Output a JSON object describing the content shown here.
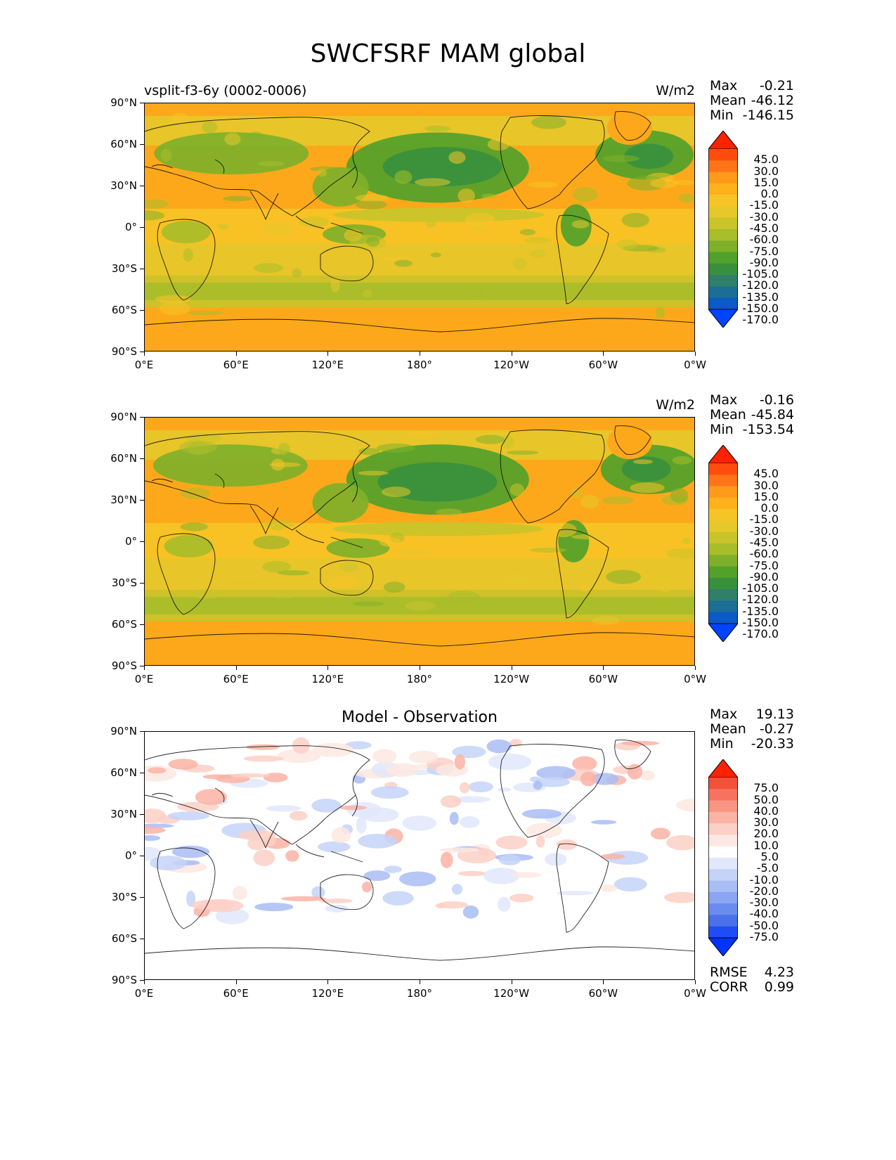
{
  "title": "SWCFSRF MAM global",
  "x_ticks": [
    "0°E",
    "60°E",
    "120°E",
    "180°",
    "120°W",
    "60°W",
    "0°W"
  ],
  "y_ticks": [
    "90°N",
    "60°N",
    "30°N",
    "0°",
    "30°S",
    "60°S",
    "90°S"
  ],
  "panels": [
    {
      "left_label": "vsplit-f3-6y (0002-0006)",
      "center_label": "",
      "units": "W/m2",
      "stats": [
        {
          "key": "Max",
          "value": "-0.21"
        },
        {
          "key": "Mean",
          "value": "-46.12"
        },
        {
          "key": "Min",
          "value": "-146.15"
        }
      ],
      "colorbar": {
        "labels": [
          "45.0",
          "30.0",
          "15.0",
          "0.0",
          "-15.0",
          "-30.0",
          "-45.0",
          "-60.0",
          "-75.0",
          "-90.0",
          "-105.0",
          "-120.0",
          "-135.0",
          "-150.0",
          "-170.0"
        ],
        "colors": [
          "#ff2200",
          "#ff4d0d",
          "#ff7417",
          "#ff9a1a",
          "#fdb11a",
          "#f7c426",
          "#e6c82b",
          "#c9c42a",
          "#a8bd2a",
          "#7fb02a",
          "#52a12a",
          "#38903d",
          "#2f7f6a",
          "#1b6e96",
          "#0a5ac8",
          "#0044ff"
        ]
      },
      "map_kind": "sw"
    },
    {
      "left_label": "",
      "center_label": "",
      "units": "W/m2",
      "stats": [
        {
          "key": "Max",
          "value": "-0.16"
        },
        {
          "key": "Mean",
          "value": "-45.84"
        },
        {
          "key": "Min",
          "value": "-153.54"
        }
      ],
      "colorbar": {
        "labels": [
          "45.0",
          "30.0",
          "15.0",
          "0.0",
          "-15.0",
          "-30.0",
          "-45.0",
          "-60.0",
          "-75.0",
          "-90.0",
          "-105.0",
          "-120.0",
          "-135.0",
          "-150.0",
          "-170.0"
        ],
        "colors": [
          "#ff2200",
          "#ff4d0d",
          "#ff7417",
          "#ff9a1a",
          "#fdb11a",
          "#f7c426",
          "#e6c82b",
          "#c9c42a",
          "#a8bd2a",
          "#7fb02a",
          "#52a12a",
          "#38903d",
          "#2f7f6a",
          "#1b6e96",
          "#0a5ac8",
          "#0044ff"
        ]
      },
      "map_kind": "sw"
    },
    {
      "left_label": "",
      "center_label": "Model - Observation",
      "units": "",
      "stats": [
        {
          "key": "Max",
          "value": "19.13"
        },
        {
          "key": "Mean",
          "value": "-0.27"
        },
        {
          "key": "Min",
          "value": "-20.33"
        }
      ],
      "extra_stats": [
        {
          "key": "RMSE",
          "value": "4.23"
        },
        {
          "key": "CORR",
          "value": "0.99"
        }
      ],
      "colorbar": {
        "labels": [
          "75.0",
          "50.0",
          "40.0",
          "30.0",
          "20.0",
          "10.0",
          "5.0",
          "-5.0",
          "-10.0",
          "-20.0",
          "-30.0",
          "-40.0",
          "-50.0",
          "-75.0"
        ],
        "colors": [
          "#ff2200",
          "#f5503a",
          "#f7735e",
          "#f99582",
          "#fbb3a4",
          "#fcd0c6",
          "#fde7e2",
          "#ffffff",
          "#e1e8fb",
          "#c6d3f8",
          "#a9bdf5",
          "#8aa5f2",
          "#6a8cee",
          "#4a71ea",
          "#1f4df5",
          "#0033ff"
        ]
      },
      "map_kind": "diff"
    }
  ]
}
